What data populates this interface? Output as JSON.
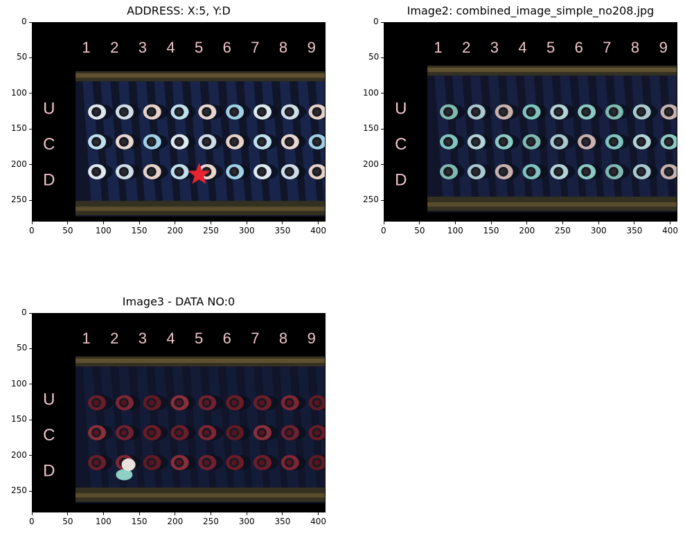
{
  "panels": [
    {
      "title": "ADDRESS: X:5, Y:D",
      "variant": "a",
      "marker": {
        "icon": "star-marker",
        "color": "#e8232f",
        "col": 5,
        "row": "D"
      }
    },
    {
      "title": "Image2: combined_image_simple_no208.jpg",
      "variant": "b",
      "marker": null
    },
    {
      "title": "Image3 - DATA NO:0",
      "variant": "c",
      "marker": null
    }
  ],
  "axes": {
    "x_ticks": [
      "0",
      "50",
      "100",
      "150",
      "200",
      "250",
      "300",
      "350",
      "400"
    ],
    "y_ticks": [
      "0",
      "50",
      "100",
      "150",
      "200",
      "250"
    ],
    "x_values": [
      0,
      50,
      100,
      150,
      200,
      250,
      300,
      350,
      400
    ],
    "y_values": [
      0,
      50,
      100,
      150,
      200,
      250
    ],
    "x_range": [
      0,
      410
    ],
    "y_range": [
      0,
      280
    ]
  },
  "image_labels": {
    "columns": [
      "1",
      "2",
      "3",
      "4",
      "5",
      "6",
      "7",
      "8",
      "9"
    ],
    "rows": [
      "U",
      "C",
      "D"
    ]
  },
  "colors": {
    "label_pink": "#f2c6cc",
    "tray_bg": "#10152a",
    "marker_red": "#e8232f"
  }
}
